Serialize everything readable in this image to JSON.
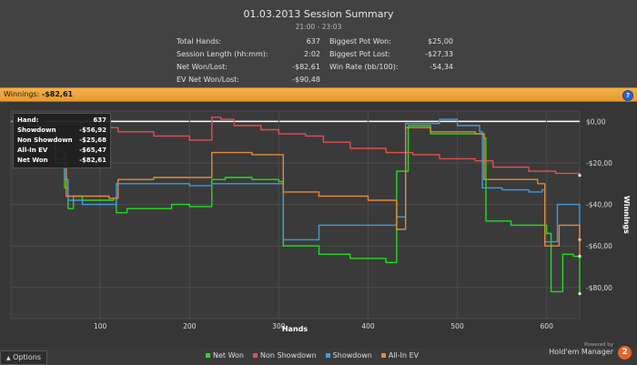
{
  "summary": {
    "title": "01.03.2013 Session Summary",
    "time_range": "21:00 - 23:03",
    "stats_left": [
      {
        "label": "Total Hands:",
        "value": "637"
      },
      {
        "label": "Session Length (hh:mm):",
        "value": "2:02"
      },
      {
        "label": "Net Won/Lost:",
        "value": "-$82,61"
      },
      {
        "label": "EV Net Won/Lost:",
        "value": "-$90,48"
      }
    ],
    "stats_right": [
      {
        "label": "Biggest Pot Won:",
        "value": "$25,00"
      },
      {
        "label": "Biggest Pot Lost:",
        "value": "-$27,33"
      },
      {
        "label": "Win Rate (bb/100):",
        "value": "-54,34"
      }
    ]
  },
  "winnings_bar": {
    "label": "Winnings:",
    "value": "-$82,61",
    "help_icon": "?"
  },
  "tooltip": {
    "header_label": "Hand:",
    "header_value": "637",
    "rows": [
      {
        "label": "Showdown",
        "value": "-$56,92"
      },
      {
        "label": "Non Showdown",
        "value": "-$25,68"
      },
      {
        "label": "All-In EV",
        "value": "-$65,47"
      },
      {
        "label": "Net Won",
        "value": "-$82,61"
      }
    ]
  },
  "footer": {
    "options_label": "Options",
    "options_icon": "triangle-up-icon",
    "powered_by": "Powered by",
    "brand": "Hold'em Manager",
    "brand_logo": "2"
  },
  "colors": {
    "net_won": "#22dd22",
    "non_showdown": "#e05050",
    "showdown": "#4499dd",
    "all_in_ev": "#e08a3a",
    "accent_bar": "#f0a840"
  },
  "chart_data": {
    "type": "line",
    "title": "",
    "xlabel": "Hands",
    "ylabel": "Winnings",
    "xlim": [
      0,
      637
    ],
    "ylim": [
      -95,
      5
    ],
    "x_ticks": [
      100,
      200,
      300,
      400,
      500,
      600
    ],
    "y_ticks": [
      0,
      -20,
      -40,
      -60,
      -80
    ],
    "y_tick_labels": [
      "$0,00",
      "-$20,00",
      "-$40,00",
      "-$60,00",
      "-$80,00"
    ],
    "x_tick_labels": [
      "100",
      "200",
      "300",
      "400",
      "500",
      "600"
    ],
    "legend": [
      "Net Won",
      "Non Showdown",
      "Showdown",
      "All-In EV"
    ],
    "legend_position": "bottom",
    "series": [
      {
        "name": "Net Won",
        "color": "#22dd22",
        "points": [
          [
            0,
            0
          ],
          [
            20,
            -2
          ],
          [
            40,
            -8
          ],
          [
            50,
            -20
          ],
          [
            60,
            -32
          ],
          [
            64,
            -42
          ],
          [
            70,
            -36
          ],
          [
            80,
            -38
          ],
          [
            100,
            -38
          ],
          [
            115,
            -37
          ],
          [
            118,
            -44
          ],
          [
            130,
            -42
          ],
          [
            150,
            -42
          ],
          [
            180,
            -40
          ],
          [
            200,
            -41
          ],
          [
            220,
            -41
          ],
          [
            225,
            -28
          ],
          [
            240,
            -27
          ],
          [
            270,
            -28
          ],
          [
            300,
            -29
          ],
          [
            305,
            -60
          ],
          [
            340,
            -60
          ],
          [
            345,
            -64
          ],
          [
            380,
            -66
          ],
          [
            420,
            -68
          ],
          [
            428,
            -68
          ],
          [
            432,
            -24
          ],
          [
            440,
            -24
          ],
          [
            445,
            -2
          ],
          [
            470,
            -6
          ],
          [
            500,
            -6
          ],
          [
            530,
            -8
          ],
          [
            532,
            -48
          ],
          [
            560,
            -50
          ],
          [
            590,
            -50
          ],
          [
            600,
            -54
          ],
          [
            605,
            -82
          ],
          [
            615,
            -82
          ],
          [
            618,
            -64
          ],
          [
            630,
            -65
          ],
          [
            637,
            -83
          ]
        ]
      },
      {
        "name": "Non Showdown",
        "color": "#e05050",
        "points": [
          [
            0,
            0
          ],
          [
            40,
            -1
          ],
          [
            80,
            -3
          ],
          [
            120,
            -5
          ],
          [
            160,
            -7
          ],
          [
            200,
            -9
          ],
          [
            220,
            -9
          ],
          [
            225,
            2
          ],
          [
            235,
            1
          ],
          [
            250,
            -2
          ],
          [
            280,
            -4
          ],
          [
            300,
            -6
          ],
          [
            330,
            -7
          ],
          [
            350,
            -10
          ],
          [
            380,
            -13
          ],
          [
            420,
            -15
          ],
          [
            450,
            -16
          ],
          [
            480,
            -18
          ],
          [
            520,
            -19
          ],
          [
            540,
            -22
          ],
          [
            580,
            -24
          ],
          [
            610,
            -25
          ],
          [
            637,
            -26
          ]
        ]
      },
      {
        "name": "Showdown",
        "color": "#4499dd",
        "points": [
          [
            0,
            0
          ],
          [
            30,
            -2
          ],
          [
            50,
            -14
          ],
          [
            60,
            -28
          ],
          [
            64,
            -38
          ],
          [
            80,
            -40
          ],
          [
            115,
            -40
          ],
          [
            118,
            -30
          ],
          [
            200,
            -31
          ],
          [
            220,
            -31
          ],
          [
            225,
            -30
          ],
          [
            300,
            -30
          ],
          [
            305,
            -57
          ],
          [
            340,
            -57
          ],
          [
            345,
            -50
          ],
          [
            430,
            -50
          ],
          [
            432,
            -46
          ],
          [
            440,
            -46
          ],
          [
            442,
            -1
          ],
          [
            470,
            -1
          ],
          [
            480,
            1
          ],
          [
            500,
            -2
          ],
          [
            525,
            -5
          ],
          [
            528,
            -32
          ],
          [
            550,
            -33
          ],
          [
            580,
            -34
          ],
          [
            595,
            -33
          ],
          [
            598,
            -58
          ],
          [
            610,
            -58
          ],
          [
            612,
            -40
          ],
          [
            630,
            -40
          ],
          [
            637,
            -57
          ]
        ]
      },
      {
        "name": "All-In EV",
        "color": "#e08a3a",
        "points": [
          [
            0,
            0
          ],
          [
            30,
            -5
          ],
          [
            50,
            -18
          ],
          [
            62,
            -36
          ],
          [
            80,
            -36
          ],
          [
            110,
            -37
          ],
          [
            120,
            -28
          ],
          [
            160,
            -27
          ],
          [
            200,
            -27
          ],
          [
            225,
            -15
          ],
          [
            270,
            -16
          ],
          [
            300,
            -16
          ],
          [
            305,
            -34
          ],
          [
            340,
            -34
          ],
          [
            345,
            -36
          ],
          [
            400,
            -38
          ],
          [
            430,
            -38
          ],
          [
            432,
            -52
          ],
          [
            440,
            -52
          ],
          [
            442,
            -3
          ],
          [
            470,
            -5
          ],
          [
            520,
            -6
          ],
          [
            530,
            -28
          ],
          [
            590,
            -30
          ],
          [
            598,
            -60
          ],
          [
            610,
            -60
          ],
          [
            614,
            -50
          ],
          [
            630,
            -50
          ],
          [
            637,
            -65
          ]
        ]
      }
    ]
  }
}
